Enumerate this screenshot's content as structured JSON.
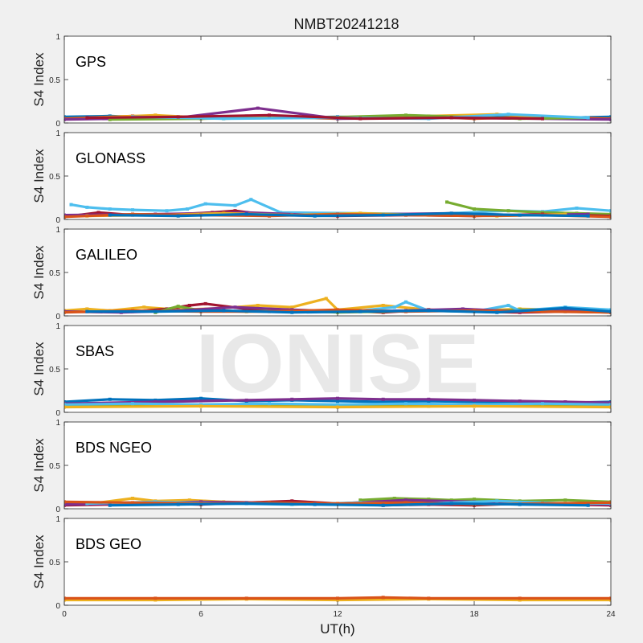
{
  "chart_data": {
    "type": "scatter",
    "title": "NMBT20241218",
    "watermark": "IONISE",
    "xlabel": "UT(h)",
    "xlim": [
      0,
      24
    ],
    "x_ticks": [
      0,
      6,
      12,
      18,
      24
    ],
    "x_tick_labels": [
      "0",
      "6",
      "12",
      "18",
      "24"
    ],
    "colors": {
      "blue": "#0072bd",
      "orange": "#d95319",
      "yellow": "#edb120",
      "purple": "#7e2f8e",
      "green": "#77ac30",
      "cyan": "#4dbeee",
      "darkred": "#a2142f"
    },
    "panels": [
      {
        "label": "GPS",
        "ylabel": "S4 Index",
        "ylim": [
          0,
          1
        ],
        "y_ticks": [
          0,
          0.5,
          1
        ],
        "y_tick_labels": [
          "0",
          "0.5",
          "1"
        ],
        "series": [
          {
            "color": "blue",
            "x": [
              0,
              2,
              4,
              6,
              8,
              10,
              12,
              14,
              16,
              18,
              20,
              22,
              24
            ],
            "y": [
              0.07,
              0.08,
              0.06,
              0.07,
              0.08,
              0.06,
              0.07,
              0.06,
              0.07,
              0.06,
              0.07,
              0.06,
              0.07
            ]
          },
          {
            "color": "orange",
            "x": [
              0,
              3,
              6,
              9,
              12,
              15,
              18,
              21,
              24
            ],
            "y": [
              0.05,
              0.08,
              0.05,
              0.07,
              0.05,
              0.08,
              0.05,
              0.07,
              0.05
            ]
          },
          {
            "color": "yellow",
            "x": [
              1,
              4,
              7,
              10,
              13,
              16,
              19,
              22
            ],
            "y": [
              0.06,
              0.09,
              0.05,
              0.07,
              0.06,
              0.08,
              0.1,
              0.06
            ]
          },
          {
            "color": "purple",
            "x": [
              0,
              5,
              8.5,
              12,
              17,
              21,
              24
            ],
            "y": [
              0.04,
              0.06,
              0.17,
              0.05,
              0.06,
              0.05,
              0.04
            ]
          },
          {
            "color": "green",
            "x": [
              2,
              6,
              11,
              15,
              20,
              23
            ],
            "y": [
              0.04,
              0.05,
              0.06,
              0.09,
              0.05,
              0.06
            ]
          },
          {
            "color": "cyan",
            "x": [
              3,
              7,
              12,
              16,
              19.5,
              23
            ],
            "y": [
              0.07,
              0.05,
              0.06,
              0.05,
              0.1,
              0.06
            ]
          },
          {
            "color": "darkred",
            "x": [
              1,
              5,
              9,
              13,
              17,
              21
            ],
            "y": [
              0.06,
              0.07,
              0.09,
              0.05,
              0.06,
              0.05
            ]
          }
        ]
      },
      {
        "label": "GLONASS",
        "ylabel": "S4 Index",
        "ylim": [
          0,
          1
        ],
        "y_ticks": [
          0,
          0.5,
          1
        ],
        "y_tick_labels": [
          "0",
          "0.5",
          "1"
        ],
        "series": [
          {
            "color": "cyan",
            "x": [
              0.3,
              1,
              2,
              3,
              4.5,
              5.4,
              6.2,
              7.5,
              8.2,
              9.5,
              13,
              16,
              19.5,
              21,
              22.5,
              24
            ],
            "y": [
              0.17,
              0.14,
              0.12,
              0.11,
              0.1,
              0.12,
              0.18,
              0.16,
              0.23,
              0.08,
              0.07,
              0.06,
              0.1,
              0.09,
              0.13,
              0.1
            ]
          },
          {
            "color": "green",
            "x": [
              16.8,
              18,
              19.5,
              21,
              22.5,
              24
            ],
            "y": [
              0.2,
              0.12,
              0.1,
              0.08,
              0.07,
              0.06
            ]
          },
          {
            "color": "darkred",
            "x": [
              0,
              1.5,
              3,
              5,
              6.5,
              7.5,
              9,
              12,
              15,
              18,
              21,
              24
            ],
            "y": [
              0.03,
              0.08,
              0.05,
              0.06,
              0.08,
              0.1,
              0.05,
              0.04,
              0.05,
              0.04,
              0.06,
              0.04
            ]
          },
          {
            "color": "purple",
            "x": [
              0,
              4,
              8,
              11,
              14,
              17,
              20,
              23
            ],
            "y": [
              0.05,
              0.06,
              0.08,
              0.05,
              0.06,
              0.07,
              0.05,
              0.06
            ]
          },
          {
            "color": "yellow",
            "x": [
              1,
              4,
              7,
              10,
              13,
              16,
              19,
              22
            ],
            "y": [
              0.04,
              0.05,
              0.07,
              0.05,
              0.07,
              0.05,
              0.04,
              0.06
            ]
          },
          {
            "color": "orange",
            "x": [
              0,
              3,
              6,
              9,
              12,
              15,
              18,
              21,
              24
            ],
            "y": [
              0.03,
              0.06,
              0.05,
              0.04,
              0.06,
              0.05,
              0.04,
              0.05,
              0.03
            ]
          },
          {
            "color": "blue",
            "x": [
              2,
              5,
              8,
              11,
              14,
              17,
              20,
              23
            ],
            "y": [
              0.05,
              0.04,
              0.06,
              0.04,
              0.05,
              0.07,
              0.05,
              0.04
            ]
          }
        ]
      },
      {
        "label": "GALILEO",
        "ylabel": "S4 Index",
        "ylim": [
          0,
          1
        ],
        "y_ticks": [
          0,
          0.5,
          1
        ],
        "y_tick_labels": [
          "0",
          "0.5",
          "1"
        ],
        "series": [
          {
            "color": "yellow",
            "x": [
              0,
              1,
              2,
              3.5,
              5,
              7,
              8.5,
              10,
              11.5,
              12,
              14,
              16,
              18,
              20,
              22,
              24
            ],
            "y": [
              0.06,
              0.08,
              0.06,
              0.1,
              0.07,
              0.09,
              0.12,
              0.1,
              0.2,
              0.07,
              0.12,
              0.07,
              0.06,
              0.08,
              0.07,
              0.06
            ]
          },
          {
            "color": "darkred",
            "x": [
              3,
              4.5,
              5.5,
              6.2,
              8,
              10,
              12,
              14,
              16,
              18,
              20,
              22,
              24
            ],
            "y": [
              0.05,
              0.08,
              0.12,
              0.14,
              0.08,
              0.05,
              0.06,
              0.04,
              0.07,
              0.05,
              0.04,
              0.05,
              0.04
            ]
          },
          {
            "color": "green",
            "x": [
              4,
              5,
              6,
              8,
              10,
              12,
              14,
              16,
              18,
              20,
              22,
              24
            ],
            "y": [
              0.04,
              0.11,
              0.06,
              0.05,
              0.06,
              0.04,
              0.05,
              0.06,
              0.05,
              0.07,
              0.05,
              0.04
            ]
          },
          {
            "color": "cyan",
            "x": [
              13,
              14.5,
              15,
              16,
              18,
              19.5,
              20,
              22,
              24
            ],
            "y": [
              0.06,
              0.1,
              0.16,
              0.06,
              0.05,
              0.12,
              0.06,
              0.1,
              0.07
            ]
          },
          {
            "color": "purple",
            "x": [
              0,
              2.5,
              5,
              7.5,
              10,
              12.5,
              15,
              17.5,
              20,
              22.5,
              24
            ],
            "y": [
              0.05,
              0.04,
              0.06,
              0.1,
              0.07,
              0.05,
              0.06,
              0.08,
              0.05,
              0.06,
              0.04
            ]
          },
          {
            "color": "orange",
            "x": [
              0,
              3,
              6,
              9,
              12,
              15,
              18,
              21,
              24
            ],
            "y": [
              0.04,
              0.06,
              0.05,
              0.05,
              0.07,
              0.05,
              0.06,
              0.05,
              0.04
            ]
          },
          {
            "color": "blue",
            "x": [
              1,
              4,
              7,
              10,
              13,
              16,
              19,
              22,
              24
            ],
            "y": [
              0.05,
              0.05,
              0.06,
              0.04,
              0.05,
              0.06,
              0.04,
              0.09,
              0.05
            ]
          }
        ]
      },
      {
        "label": "SBAS",
        "ylabel": "S4 Index",
        "ylim": [
          0,
          1
        ],
        "y_ticks": [
          0,
          0.5,
          1
        ],
        "y_tick_labels": [
          "0",
          "0.5",
          "1"
        ],
        "series": [
          {
            "color": "blue",
            "x": [
              0,
              2,
              4,
              6,
              8,
              10,
              12,
              14,
              16,
              18,
              20,
              22,
              24
            ],
            "y": [
              0.12,
              0.15,
              0.14,
              0.16,
              0.13,
              0.14,
              0.13,
              0.12,
              0.13,
              0.12,
              0.12,
              0.11,
              0.12
            ]
          },
          {
            "color": "purple",
            "x": [
              0,
              4,
              8,
              10,
              12,
              14,
              16,
              18,
              20,
              22,
              24
            ],
            "y": [
              0.1,
              0.12,
              0.14,
              0.15,
              0.16,
              0.15,
              0.15,
              0.14,
              0.13,
              0.12,
              0.11
            ]
          },
          {
            "color": "green",
            "x": [
              0,
              4,
              8,
              12,
              16,
              20,
              24
            ],
            "y": [
              0.07,
              0.08,
              0.08,
              0.08,
              0.07,
              0.08,
              0.07
            ]
          },
          {
            "color": "cyan",
            "x": [
              0,
              3,
              6,
              9,
              12,
              15,
              18,
              21,
              24
            ],
            "y": [
              0.09,
              0.1,
              0.09,
              0.1,
              0.09,
              0.1,
              0.09,
              0.1,
              0.09
            ]
          },
          {
            "color": "yellow",
            "x": [
              0,
              6,
              12,
              18,
              24
            ],
            "y": [
              0.06,
              0.07,
              0.06,
              0.07,
              0.06
            ]
          }
        ]
      },
      {
        "label": "BDS NGEO",
        "ylabel": "S4 Index",
        "ylim": [
          0,
          1
        ],
        "y_ticks": [
          0,
          0.5,
          1
        ],
        "y_tick_labels": [
          "0",
          "0.5",
          "1"
        ],
        "series": [
          {
            "color": "yellow",
            "x": [
              0,
              1.5,
              3,
              4,
              5.5,
              7,
              8.5,
              10,
              12,
              14,
              16,
              18,
              20,
              22,
              24
            ],
            "y": [
              0.05,
              0.07,
              0.12,
              0.09,
              0.1,
              0.08,
              0.07,
              0.05,
              0.06,
              0.07,
              0.08,
              0.1,
              0.07,
              0.06,
              0.05
            ]
          },
          {
            "color": "darkred",
            "x": [
              0,
              2,
              4,
              6,
              8,
              10,
              12,
              14,
              16,
              18,
              20,
              22,
              24
            ],
            "y": [
              0.04,
              0.05,
              0.06,
              0.05,
              0.07,
              0.09,
              0.06,
              0.04,
              0.05,
              0.04,
              0.06,
              0.05,
              0.04
            ]
          },
          {
            "color": "green",
            "x": [
              13,
              14.5,
              16,
              17,
              18,
              20,
              22,
              24
            ],
            "y": [
              0.1,
              0.12,
              0.11,
              0.1,
              0.11,
              0.09,
              0.1,
              0.08
            ]
          },
          {
            "color": "purple",
            "x": [
              0,
              3,
              6,
              9,
              12,
              15,
              18,
              21,
              24
            ],
            "y": [
              0.05,
              0.06,
              0.08,
              0.07,
              0.06,
              0.1,
              0.08,
              0.06,
              0.05
            ]
          },
          {
            "color": "cyan",
            "x": [
              1,
              4,
              7,
              10,
              13,
              16,
              19,
              22,
              24
            ],
            "y": [
              0.06,
              0.08,
              0.06,
              0.05,
              0.07,
              0.06,
              0.09,
              0.06,
              0.06
            ]
          },
          {
            "color": "orange",
            "x": [
              0,
              3,
              6,
              9,
              12,
              15,
              18,
              21,
              24
            ],
            "y": [
              0.08,
              0.07,
              0.06,
              0.07,
              0.06,
              0.07,
              0.05,
              0.06,
              0.07
            ]
          },
          {
            "color": "blue",
            "x": [
              2,
              5,
              8,
              11,
              14,
              17,
              20,
              23
            ],
            "y": [
              0.04,
              0.05,
              0.06,
              0.05,
              0.04,
              0.06,
              0.05,
              0.04
            ]
          }
        ]
      },
      {
        "label": "BDS GEO",
        "ylabel": "S4 Index",
        "ylim": [
          0,
          1
        ],
        "y_ticks": [
          0,
          0.5,
          1
        ],
        "y_tick_labels": [
          "0",
          "0.5",
          "1"
        ],
        "series": [
          {
            "color": "yellow",
            "x": [
              0,
              4,
              8,
              12,
              16,
              20,
              24
            ],
            "y": [
              0.06,
              0.06,
              0.07,
              0.06,
              0.07,
              0.06,
              0.06
            ]
          },
          {
            "color": "orange",
            "x": [
              0,
              4,
              8,
              12,
              14,
              16,
              20,
              24
            ],
            "y": [
              0.08,
              0.08,
              0.08,
              0.08,
              0.09,
              0.08,
              0.08,
              0.08
            ]
          }
        ]
      }
    ]
  }
}
